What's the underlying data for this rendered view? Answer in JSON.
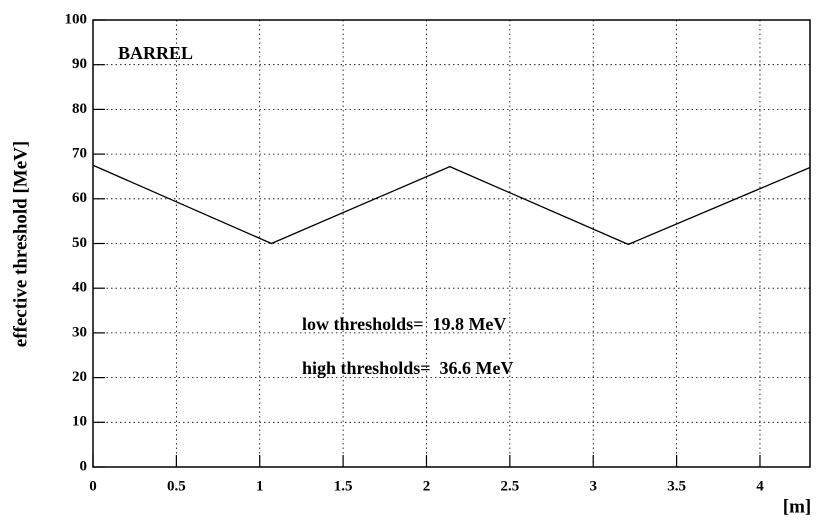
{
  "chart_data": {
    "type": "line",
    "ylabel": "effective threshold [MeV]",
    "xlabel": "[m]",
    "annotations": [
      "BARREL",
      "low thresholds=  19.8 MeV",
      "high thresholds=  36.6 MeV"
    ],
    "x": [
      0,
      1.07,
      2.14,
      3.21,
      4.3
    ],
    "values": [
      67.5,
      50,
      67.2,
      49.8,
      67
    ],
    "color": "#000000",
    "xlim": [
      0,
      4.3
    ],
    "xticks": [
      0,
      0.5,
      1,
      1.5,
      2,
      2.5,
      3,
      3.5,
      4
    ],
    "ylim": [
      0,
      100
    ],
    "yticks": [
      0,
      10,
      20,
      30,
      40,
      50,
      60,
      70,
      80,
      90,
      100
    ],
    "grid": true
  }
}
